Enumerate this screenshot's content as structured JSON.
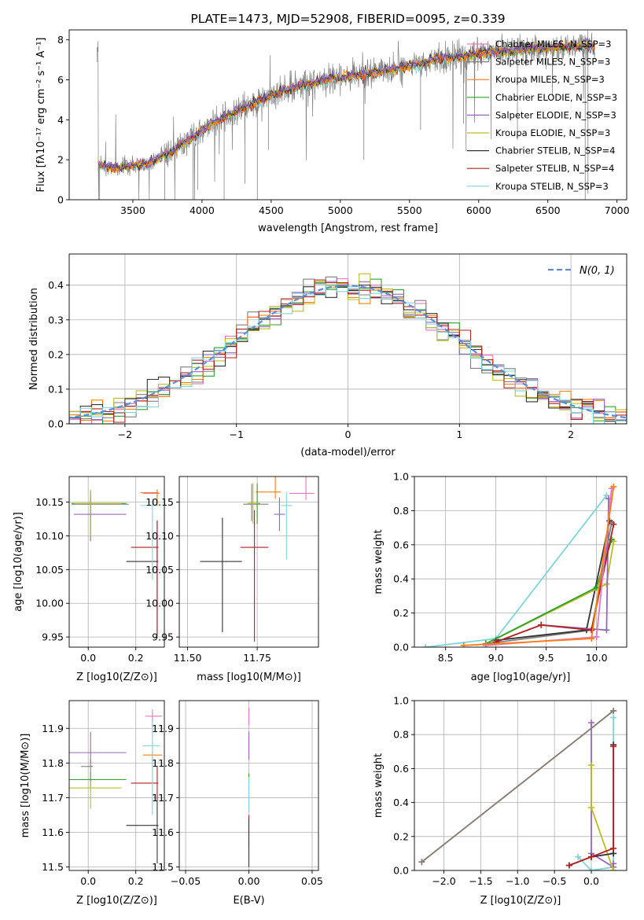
{
  "colors": {
    "CM": "#e377c2",
    "SM": "#7f7f7f",
    "KM": "#ff7f0e",
    "CE": "#2ca02c",
    "SE": "#9467bd",
    "KE": "#bcbd22",
    "CS": "#333333",
    "SS": "#b22222",
    "KS": "#7fd4d8",
    "normal": "#5b8bd9"
  },
  "chart_data": [
    {
      "id": "spectrum",
      "type": "line",
      "title": "PLATE=1473, MJD=52908, FIBERID=0095, z=0.339",
      "xlabel": "wavelength [Angstrom, rest frame]",
      "ylabel_text": "Flux [fλ10⁻¹⁷ erg cm⁻² s⁻¹ A⁻¹]",
      "xlim": [
        3040,
        7070
      ],
      "ylim": [
        0,
        8.5
      ],
      "xticks": [
        "3500",
        "4000",
        "4500",
        "5000",
        "5500",
        "6000",
        "6500",
        "7000"
      ],
      "yticks": [
        "0",
        "2",
        "4",
        "6",
        "8"
      ],
      "observed_range": [
        3240,
        6840
      ],
      "continuum": [
        [
          3250,
          1.7
        ],
        [
          3400,
          1.6
        ],
        [
          3600,
          1.8
        ],
        [
          3800,
          2.5
        ],
        [
          3950,
          3.2
        ],
        [
          4100,
          3.9
        ],
        [
          4300,
          4.6
        ],
        [
          4500,
          5.2
        ],
        [
          4700,
          5.7
        ],
        [
          4900,
          6.0
        ],
        [
          5100,
          6.2
        ],
        [
          5300,
          6.4
        ],
        [
          5500,
          6.7
        ],
        [
          5700,
          7.0
        ],
        [
          5900,
          7.2
        ],
        [
          6100,
          7.4
        ],
        [
          6300,
          7.5
        ],
        [
          6500,
          7.6
        ],
        [
          6840,
          7.7
        ]
      ],
      "legend": [
        {
          "key": "CM",
          "label": "Chabrier MILES, N_SSP=3"
        },
        {
          "key": "SM",
          "label": "Salpeter MILES, N_SSP=3"
        },
        {
          "key": "KM",
          "label": "Kroupa MILES, N_SSP=3"
        },
        {
          "key": "CE",
          "label": "Chabrier ELODIE, N_SSP=3"
        },
        {
          "key": "SE",
          "label": "Salpeter ELODIE, N_SSP=3"
        },
        {
          "key": "KE",
          "label": "Kroupa ELODIE, N_SSP=3"
        },
        {
          "key": "CS",
          "label": "Chabrier STELIB, N_SSP=4"
        },
        {
          "key": "SS",
          "label": "Salpeter STELIB, N_SSP=4"
        },
        {
          "key": "KS",
          "label": "Kroupa STELIB, N_SSP=3"
        }
      ],
      "legend_placement": "upper-right"
    },
    {
      "id": "residuals",
      "type": "histogram",
      "xlabel": "(data-model)/error",
      "ylabel": "Normed distribution",
      "xlim": [
        -2.5,
        2.5
      ],
      "ylim": [
        0,
        0.49
      ],
      "xticks": [
        "-2",
        "-1",
        "0",
        "1",
        "2"
      ],
      "yticks": [
        "0.0",
        "0.1",
        "0.2",
        "0.3",
        "0.4"
      ],
      "bin_width": 0.1,
      "legend_label": "N(0, 1)",
      "legend_placement": "upper-right",
      "grid": true
    },
    {
      "id": "age_Z",
      "type": "errorbar",
      "xlabel": "Z [log10(Z/Z⊙)]",
      "ylabel": "age  [log10(age/yr)]",
      "xlim": [
        -0.08,
        0.32
      ],
      "ylim": [
        9.935,
        10.188
      ],
      "xticks": [
        "0.0",
        "0.2"
      ],
      "yticks": [
        "9.95",
        "10.00",
        "10.05",
        "10.10",
        "10.15"
      ],
      "points": [
        {
          "key": "CM",
          "x": 0.29,
          "y": 10.163,
          "xe": [
            0.06,
            0.01
          ],
          "ye": [
            0.01,
            0.005
          ]
        },
        {
          "key": "SM",
          "x": 0.01,
          "y": 10.147,
          "xe": [
            0.08,
            0.16
          ],
          "ye": [
            0.02,
            0.02
          ]
        },
        {
          "key": "KM",
          "x": 0.29,
          "y": 10.164,
          "xe": [
            0.07,
            0.005
          ],
          "ye": [
            0.02,
            0.005
          ]
        },
        {
          "key": "CE",
          "x": 0.01,
          "y": 10.148,
          "xe": [
            0.08,
            0.15
          ],
          "ye": [
            0.05,
            0.01
          ]
        },
        {
          "key": "SE",
          "x": 0.01,
          "y": 10.132,
          "xe": [
            0.07,
            0.15
          ],
          "ye": [
            0.04,
            0.03
          ]
        },
        {
          "key": "KE",
          "x": 0.01,
          "y": 10.148,
          "xe": [
            0.07,
            0.13
          ],
          "ye": [
            0.05,
            0.02
          ]
        },
        {
          "key": "CS",
          "x": 0.29,
          "y": 10.062,
          "xe": [
            0.13,
            0.005
          ],
          "ye": [
            0.11,
            0.06
          ]
        },
        {
          "key": "SS",
          "x": 0.29,
          "y": 10.083,
          "xe": [
            0.11,
            0.005
          ],
          "ye": [
            0.13,
            0.04
          ]
        },
        {
          "key": "KS",
          "x": 0.27,
          "y": 10.145,
          "xe": [
            0.05,
            0.02
          ],
          "ye": [
            0.11,
            0.01
          ]
        }
      ],
      "grid": true
    },
    {
      "id": "age_mass",
      "type": "errorbar",
      "xlabel": "mass [log10(M/M⊙)]",
      "xlim": [
        11.47,
        11.97
      ],
      "ylim": [
        9.935,
        10.188
      ],
      "xticks": [
        "11.50",
        "11.75"
      ],
      "yticks": [
        "9.95",
        "10.00",
        "10.05",
        "10.10",
        "10.15"
      ],
      "points": [
        {
          "key": "CM",
          "x": 11.925,
          "y": 10.163,
          "xe": [
            0.06,
            0.03
          ],
          "ye": [
            0.01,
            0.105
          ]
        },
        {
          "key": "SM",
          "x": 11.73,
          "y": 10.147,
          "xe": [
            0.03,
            0.06
          ],
          "ye": [
            0.025,
            0.03
          ]
        },
        {
          "key": "KM",
          "x": 11.815,
          "y": 10.165,
          "xe": [
            0.07,
            0.02
          ],
          "ye": [
            0.01,
            0.08
          ]
        },
        {
          "key": "CE",
          "x": 11.75,
          "y": 10.148,
          "xe": [
            0.03,
            0.01
          ],
          "ye": [
            0.03,
            0.03
          ]
        },
        {
          "key": "SE",
          "x": 11.83,
          "y": 10.132,
          "xe": [
            0.02,
            0.02
          ],
          "ye": [
            0.025,
            0.025
          ]
        },
        {
          "key": "KE",
          "x": 11.735,
          "y": 10.148,
          "xe": [
            0.02,
            0.02
          ],
          "ye": [
            0.03,
            0.03
          ]
        },
        {
          "key": "CS",
          "x": 11.625,
          "y": 10.062,
          "xe": [
            0.08,
            0.07
          ],
          "ye": [
            0.105,
            0.065
          ]
        },
        {
          "key": "SS",
          "x": 11.74,
          "y": 10.083,
          "xe": [
            0.05,
            0.05
          ],
          "ye": [
            0.14,
            0.055
          ]
        },
        {
          "key": "KS",
          "x": 11.855,
          "y": 10.145,
          "xe": [
            0.02,
            0.02
          ],
          "ye": [
            0.08,
            0.02
          ]
        }
      ],
      "grid": true
    },
    {
      "id": "weight_age",
      "type": "line",
      "xlabel": "age  [log10(age/yr)]",
      "ylabel": "mass weight",
      "xlim": [
        8.19,
        10.3
      ],
      "ylim": [
        0,
        1.0
      ],
      "xticks": [
        "8.5",
        "9.0",
        "9.5",
        "10.0"
      ],
      "yticks": [
        "0.0",
        "0.2",
        "0.4",
        "0.6",
        "0.8",
        "1.0"
      ],
      "series": [
        {
          "key": "KS",
          "x": [
            8.3,
            9.0,
            10.1
          ],
          "y": [
            0.0,
            0.05,
            0.89
          ]
        },
        {
          "key": "SM",
          "x": [
            8.9,
            9.95,
            10.15
          ],
          "y": [
            0.02,
            0.1,
            0.73
          ]
        },
        {
          "key": "CS",
          "x": [
            9.0,
            9.9,
            10.13
          ],
          "y": [
            0.04,
            0.1,
            0.74
          ]
        },
        {
          "key": "KE",
          "x": [
            8.9,
            10.1,
            10.17
          ],
          "y": [
            0.02,
            0.37,
            0.62
          ]
        },
        {
          "key": "CE",
          "x": [
            8.9,
            10.0,
            10.15
          ],
          "y": [
            0.02,
            0.35,
            0.63
          ]
        },
        {
          "key": "SE",
          "x": [
            9.0,
            9.45,
            10.1,
            10.12
          ],
          "y": [
            0.03,
            0.13,
            0.1,
            0.87
          ]
        },
        {
          "key": "SS",
          "x": [
            9.0,
            9.45,
            9.95,
            10.17
          ],
          "y": [
            0.03,
            0.13,
            0.1,
            0.72
          ]
        },
        {
          "key": "CM",
          "x": [
            8.9,
            10.0,
            10.15
          ],
          "y": [
            0.01,
            0.06,
            0.93
          ]
        },
        {
          "key": "KM",
          "x": [
            8.68,
            9.95,
            10.17
          ],
          "y": [
            0.01,
            0.05,
            0.94
          ]
        }
      ],
      "grid": true
    },
    {
      "id": "mass_Z",
      "type": "errorbar",
      "xlabel": "Z [log10(Z/Z⊙)]",
      "ylabel": "mass [log10(M/M⊙)]",
      "xlim": [
        -0.08,
        0.32
      ],
      "ylim": [
        11.49,
        11.98
      ],
      "xticks": [
        "0.0",
        "0.2"
      ],
      "yticks": [
        "11.5",
        "11.6",
        "11.7",
        "11.8",
        "11.9"
      ],
      "points": [
        {
          "key": "CM",
          "x": 0.27,
          "y": 11.935,
          "xe": [
            0.03,
            0.04
          ],
          "ye": [
            0.02,
            0.02
          ]
        },
        {
          "key": "SM",
          "x": 0.01,
          "y": 11.79,
          "xe": [
            0.04,
            0.01
          ],
          "ye": [
            0.02,
            0.02
          ]
        },
        {
          "key": "KM",
          "x": 0.27,
          "y": 11.823,
          "xe": [
            0.04,
            0.04
          ],
          "ye": [
            0.01,
            0.01
          ]
        },
        {
          "key": "CE",
          "x": 0.01,
          "y": 11.752,
          "xe": [
            0.09,
            0.15
          ],
          "ye": [
            0.02,
            0.02
          ]
        },
        {
          "key": "SE",
          "x": 0.01,
          "y": 11.83,
          "xe": [
            0.09,
            0.15
          ],
          "ye": [
            0.03,
            0.06
          ]
        },
        {
          "key": "KE",
          "x": 0.01,
          "y": 11.728,
          "xe": [
            0.09,
            0.13
          ],
          "ye": [
            0.06,
            0.02
          ]
        },
        {
          "key": "CS",
          "x": 0.29,
          "y": 11.62,
          "xe": [
            0.13,
            0.005
          ],
          "ye": [
            0.11,
            0.09
          ]
        },
        {
          "key": "SS",
          "x": 0.29,
          "y": 11.742,
          "xe": [
            0.11,
            0.005
          ],
          "ye": [
            0.05,
            0.05
          ]
        },
        {
          "key": "KS",
          "x": 0.27,
          "y": 11.85,
          "xe": [
            0.04,
            0.03
          ],
          "ye": [
            0.2,
            0.07
          ]
        }
      ],
      "grid": true
    },
    {
      "id": "mass_EBV",
      "type": "errorbar",
      "xlabel": "E(B-V)",
      "xlim": [
        -0.055,
        0.055
      ],
      "ylim": [
        11.49,
        11.98
      ],
      "xticks": [
        "-0.05",
        "0.00",
        "0.05"
      ],
      "yticks": [
        "11.5",
        "11.6",
        "11.7",
        "11.8",
        "11.9"
      ],
      "points": [
        {
          "key": "CM",
          "x": 0,
          "y": 11.94,
          "xe": [
            0,
            0
          ],
          "ye": [
            0.03,
            0.02
          ]
        },
        {
          "key": "SE",
          "x": 0,
          "y": 11.83,
          "xe": [
            0,
            0
          ],
          "ye": [
            0.02,
            0.06
          ]
        },
        {
          "key": "CE",
          "x": 0,
          "y": 11.75,
          "xe": [
            0,
            0
          ],
          "ye": [
            0.03,
            0.02
          ]
        },
        {
          "key": "KS",
          "x": 0,
          "y": 11.72,
          "xe": [
            0,
            0
          ],
          "ye": [
            0.06,
            0.04
          ]
        },
        {
          "key": "SS",
          "x": 0,
          "y": 11.62,
          "xe": [
            0,
            0
          ],
          "ye": [
            0.06,
            0.03
          ]
        },
        {
          "key": "CS",
          "x": 0,
          "y": 11.58,
          "xe": [
            0,
            0
          ],
          "ye": [
            0.08,
            0.06
          ]
        }
      ],
      "grid": true
    },
    {
      "id": "weight_Z",
      "type": "line",
      "xlabel": "Z [log10(Z/Z⊙)]",
      "ylabel": "mass weight",
      "xlim": [
        -2.4,
        0.48
      ],
      "ylim": [
        0,
        1.0
      ],
      "xticks": [
        "-2.0",
        "-1.5",
        "-1.0",
        "-0.5",
        "0.0"
      ],
      "yticks": [
        "0.0",
        "0.2",
        "0.4",
        "0.6",
        "0.8",
        "1.0"
      ],
      "series": [
        {
          "key": "KS",
          "x": [
            -0.18,
            0.0,
            0.3,
            0.3
          ],
          "y": [
            0.08,
            0.0,
            0.02,
            0.9
          ]
        },
        {
          "key": "SE",
          "x": [
            0.0,
            0.0,
            0.3,
            0.3
          ],
          "y": [
            0.87,
            0.1,
            0.02,
            0.04
          ]
        },
        {
          "key": "KE",
          "x": [
            0.0,
            0.0,
            0.3
          ],
          "y": [
            0.62,
            0.37,
            0.0
          ]
        },
        {
          "key": "CS",
          "x": [
            -0.3,
            0.0,
            0.3,
            0.3
          ],
          "y": [
            0.03,
            0.08,
            0.1,
            0.74
          ]
        },
        {
          "key": "SS",
          "x": [
            -0.3,
            0.0,
            0.3,
            0.3
          ],
          "y": [
            0.03,
            0.08,
            0.13,
            0.73
          ]
        },
        {
          "key": "KM",
          "x": [
            -2.3,
            0.3
          ],
          "y": [
            0.05,
            0.94
          ]
        },
        {
          "key": "SM",
          "x": [
            -2.3,
            0.3
          ],
          "y": [
            0.05,
            0.94
          ]
        }
      ],
      "grid": true
    }
  ]
}
